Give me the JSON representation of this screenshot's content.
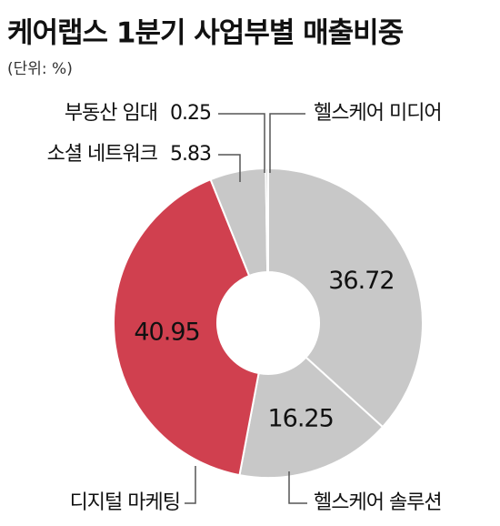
{
  "chart_data": {
    "type": "donut",
    "title": "케어랩스 1분기 사업부별 매출비중",
    "subtitle": "(단위: %)",
    "categories": [
      "헬스케어 미디어",
      "헬스케어 솔루션",
      "디지털 마케팅",
      "소셜 네트워크",
      "부동산 임대"
    ],
    "values": [
      36.72,
      16.25,
      40.95,
      5.83,
      0.25
    ],
    "colors": [
      "#c8c8c8",
      "#c8c8c8",
      "#d0404f",
      "#c8c8c8",
      "#c8c8c8"
    ]
  }
}
